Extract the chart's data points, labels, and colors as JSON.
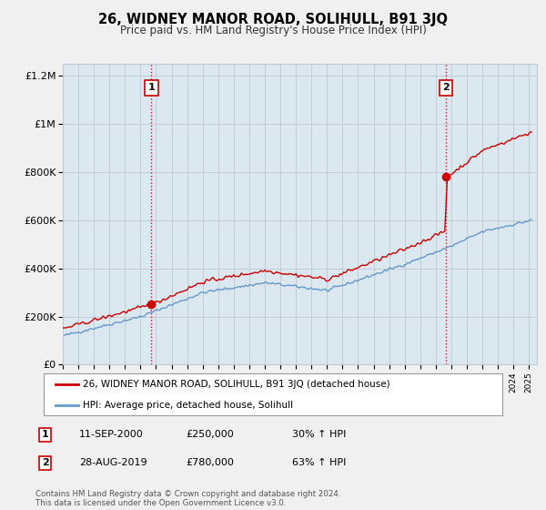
{
  "title": "26, WIDNEY MANOR ROAD, SOLIHULL, B91 3JQ",
  "subtitle": "Price paid vs. HM Land Registry's House Price Index (HPI)",
  "legend_line1": "26, WIDNEY MANOR ROAD, SOLIHULL, B91 3JQ (detached house)",
  "legend_line2": "HPI: Average price, detached house, Solihull",
  "footer": "Contains HM Land Registry data © Crown copyright and database right 2024.\nThis data is licensed under the Open Government Licence v3.0.",
  "sale1_label": "1",
  "sale1_date": "11-SEP-2000",
  "sale1_price": "£250,000",
  "sale1_hpi": "30% ↑ HPI",
  "sale1_year": 2000.7,
  "sale1_value": 250000,
  "sale2_label": "2",
  "sale2_date": "28-AUG-2019",
  "sale2_price": "£780,000",
  "sale2_hpi": "63% ↑ HPI",
  "sale2_year": 2019.65,
  "sale2_value": 780000,
  "ylim": [
    0,
    1250000
  ],
  "xlim_start": 1995,
  "xlim_end": 2025.5,
  "property_color": "#cc0000",
  "hpi_color": "#6699cc",
  "background_color": "#f0f0f0",
  "plot_bg_color": "#dce8f0",
  "grid_color": "#c0c8d0"
}
